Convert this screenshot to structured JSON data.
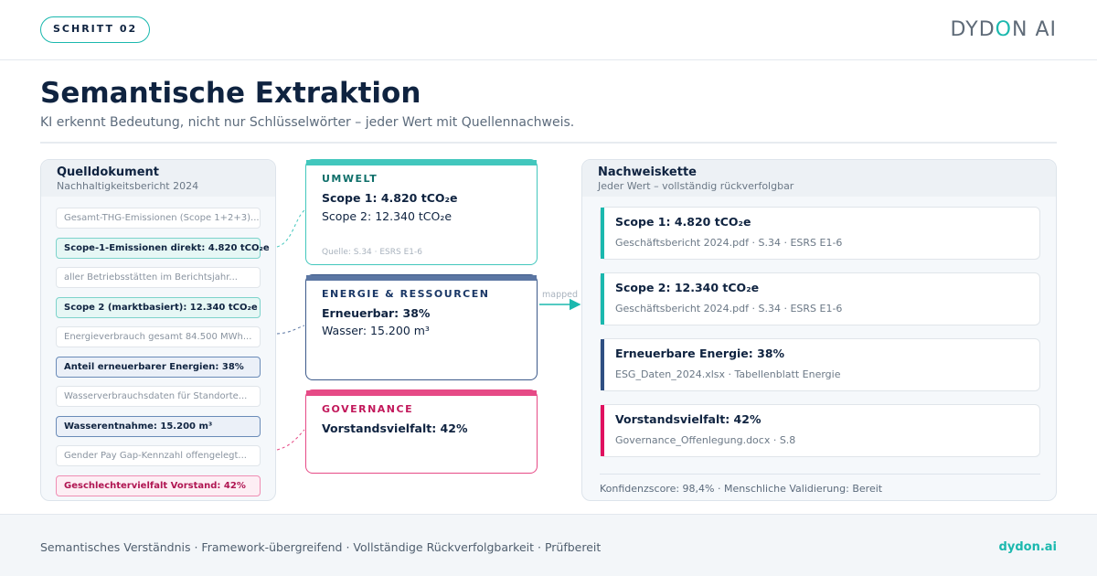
{
  "header": {
    "step": "SCHRITT 02",
    "logo_pre": "DYD",
    "logo_o": "O",
    "logo_post": "N",
    "logo_ai": "AI"
  },
  "title": "Semantische Extraktion",
  "subtitle": "KI erkennt Bedeutung, nicht nur Schlüsselwörter – jeder Wert mit Quellennachweis.",
  "source_panel": {
    "title": "Quelldokument",
    "subtitle": "Nachhaltigkeitsbericht 2024",
    "rows": [
      {
        "text": "Gesamt-THG-Emissionen (Scope 1+2+3)...",
        "style": "plain"
      },
      {
        "text": "Scope-1-Emissionen direkt: 4.820 tCO₂e",
        "style": "teal"
      },
      {
        "text": "aller Betriebsstätten im Berichtsjahr...",
        "style": "plain"
      },
      {
        "text": "Scope 2 (marktbasiert): 12.340 tCO₂e",
        "style": "teal"
      },
      {
        "text": "Energieverbrauch gesamt 84.500 MWh...",
        "style": "plain"
      },
      {
        "text": "Anteil erneuerbarer Energien: 38%",
        "style": "navy"
      },
      {
        "text": "Wasserverbrauchsdaten für Standorte...",
        "style": "plain"
      },
      {
        "text": "Wasserentnahme: 15.200 m³",
        "style": "navy"
      },
      {
        "text": "Gender Pay Gap-Kennzahl offengelegt...",
        "style": "plain"
      },
      {
        "text": "Geschlechtervielfalt Vorstand: 42%",
        "style": "pink"
      }
    ]
  },
  "categories": [
    {
      "label": "UMWELT",
      "line1": "Scope 1: 4.820 tCO₂e",
      "line2": "Scope 2: 12.340 tCO₂e",
      "source": "Quelle: S.34 · ESRS E1-6"
    },
    {
      "label": "ENERGIE & RESSOURCEN",
      "line1": "Erneuerbar: 38%",
      "line2": "Wasser: 15.200 m³"
    },
    {
      "label": "GOVERNANCE",
      "line1": "Vorstandsvielfalt: 42%"
    }
  ],
  "mapped_label": "mapped",
  "chain_panel": {
    "title": "Nachweiskette",
    "subtitle": "Jeder Wert – vollständig rückverfolgbar",
    "items": [
      {
        "title": "Scope 1: 4.820 tCO₂e",
        "source": "Geschäftsbericht 2024.pdf · S.34 · ESRS E1-6",
        "color": "#1bb8ae"
      },
      {
        "title": "Scope 2: 12.340 tCO₂e",
        "source": "Geschäftsbericht 2024.pdf · S.34 · ESRS E1-6",
        "color": "#1bb8ae"
      },
      {
        "title": "Erneuerbare Energie: 38%",
        "source": "ESG_Daten_2024.xlsx · Tabellenblatt Energie",
        "color": "#2f4f82"
      },
      {
        "title": "Vorstandsvielfalt: 42%",
        "source": "Governance_Offenlegung.docx · S.8",
        "color": "#e0115f"
      }
    ],
    "footer": "Konfidenzscore: 98,4% · Menschliche Validierung: Bereit"
  },
  "footer": {
    "text": "Semantisches Verständnis · Framework-übergreifend · Vollständige Rückverfolgbarkeit · Prüfbereit",
    "url": "dydon.ai"
  },
  "colors": {
    "accent": "#1bb8ae",
    "navy": "#2f4f82",
    "pink": "#e0115f"
  }
}
